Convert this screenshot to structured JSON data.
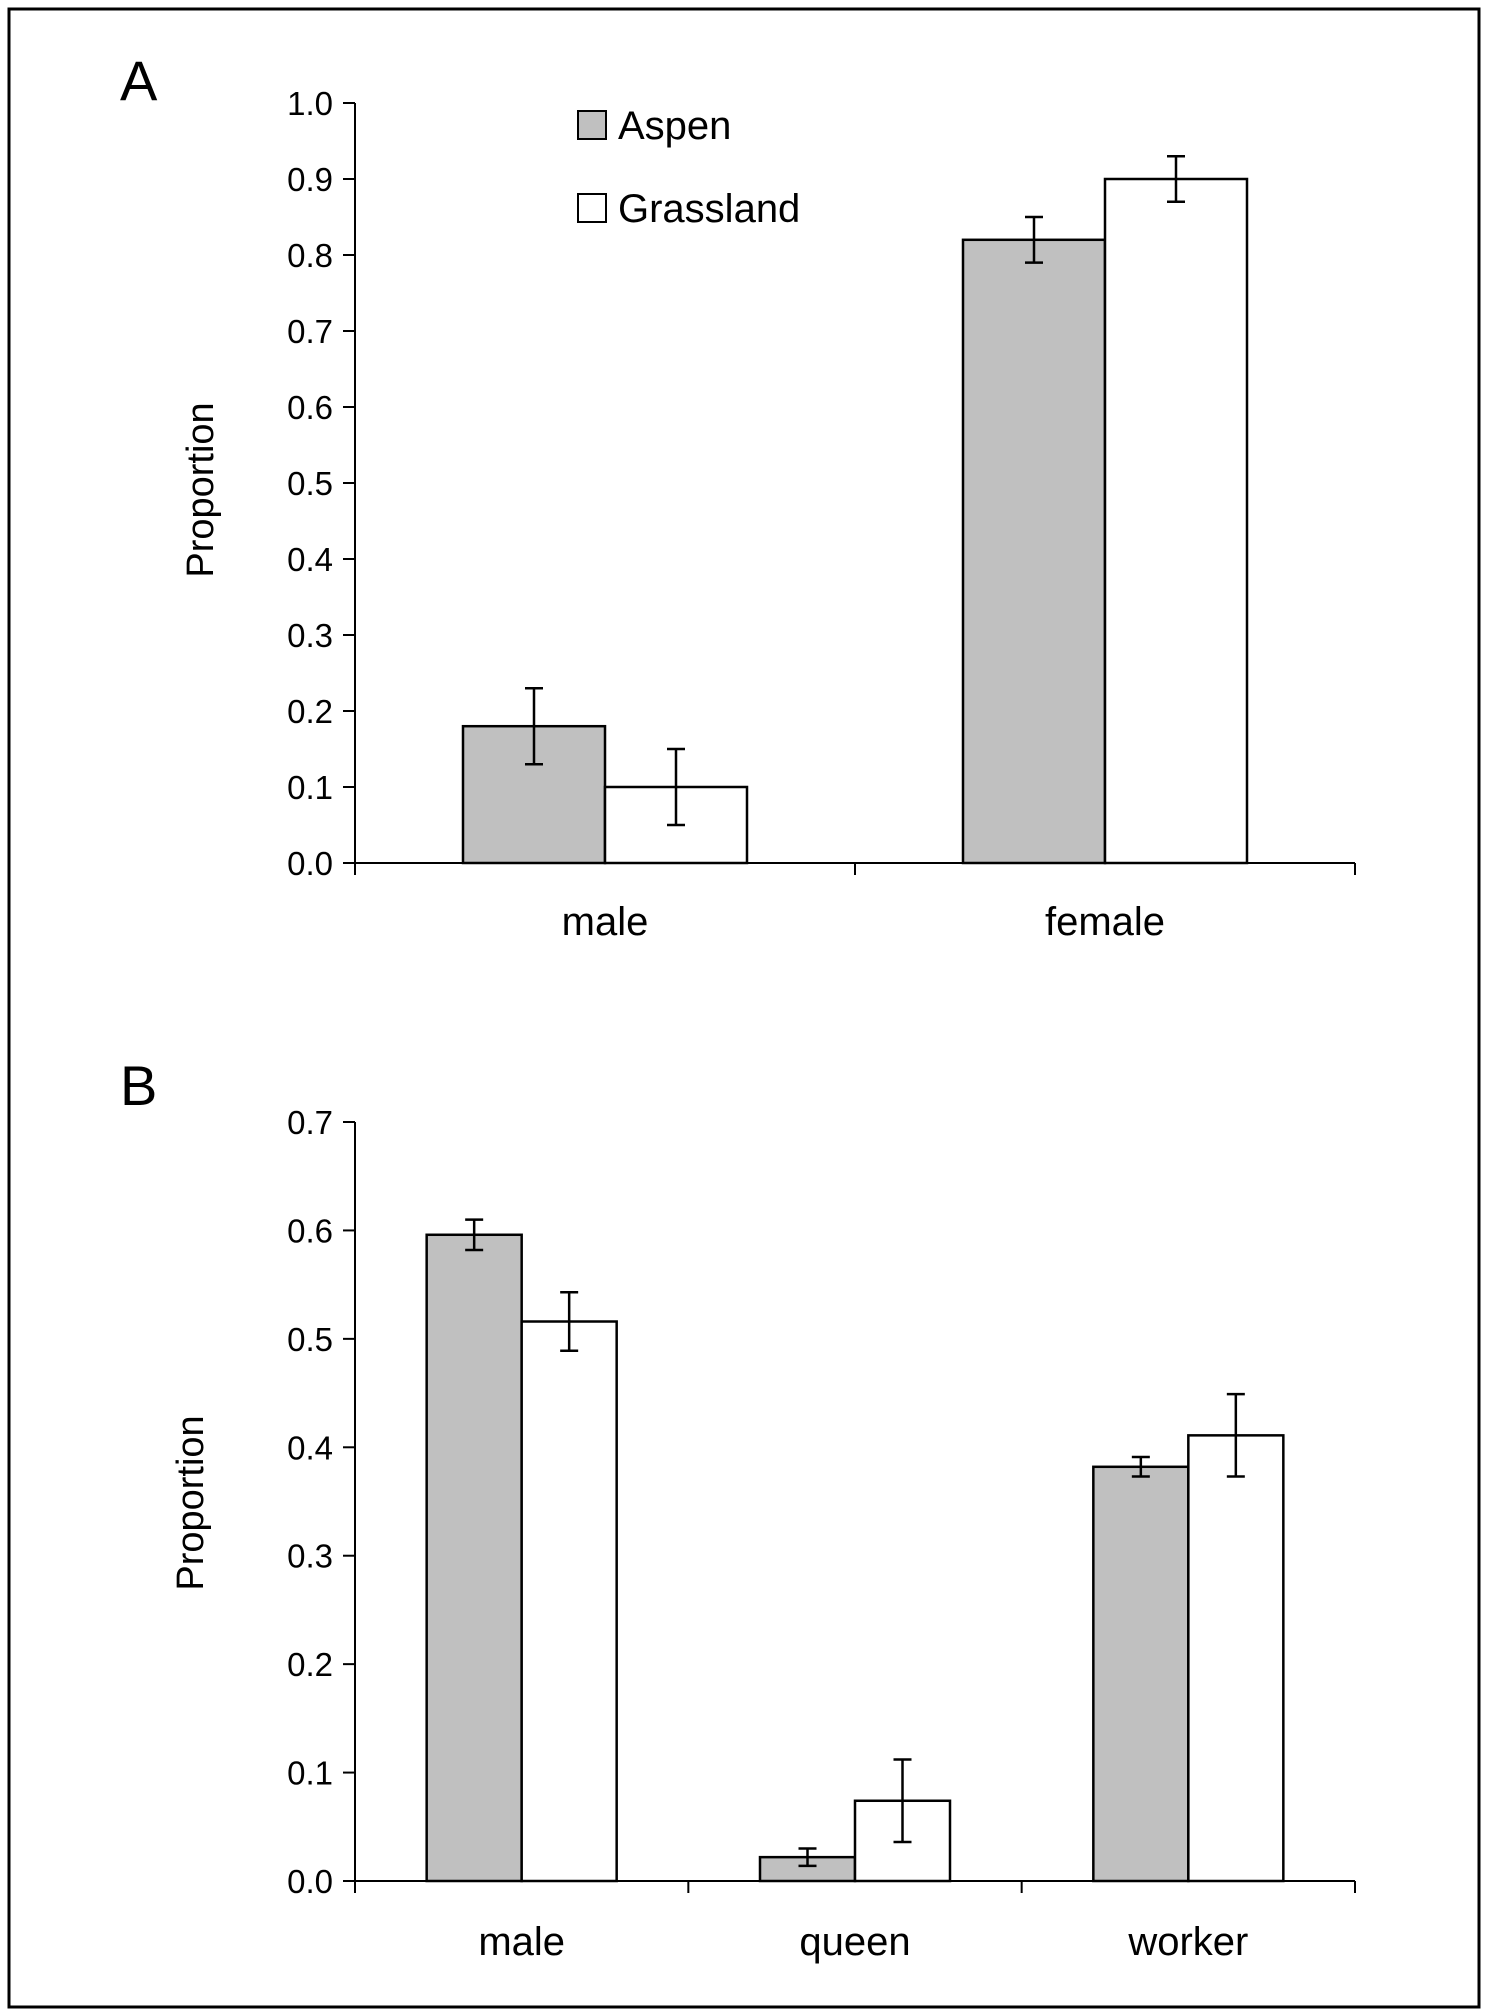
{
  "colors": {
    "aspen": "#c0c0c0",
    "grassland": "#ffffff",
    "stroke": "#000000"
  },
  "chart_data": [
    {
      "panel_label": "A",
      "type": "bar",
      "categories": [
        "male",
        "female"
      ],
      "series": [
        {
          "name": "Aspen",
          "values": [
            0.18,
            0.82
          ],
          "errors": [
            0.05,
            0.03
          ]
        },
        {
          "name": "Grassland",
          "values": [
            0.1,
            0.9
          ],
          "errors": [
            0.05,
            0.03
          ]
        }
      ],
      "ylabel": "Proportion",
      "ylim": [
        0,
        1.0
      ],
      "yticks": [
        "0.0",
        "0.1",
        "0.2",
        "0.3",
        "0.4",
        "0.5",
        "0.6",
        "0.7",
        "0.8",
        "0.9",
        "1.0"
      ],
      "legend": "top-left inside plot",
      "grid": false
    },
    {
      "panel_label": "B",
      "type": "bar",
      "categories": [
        "male",
        "queen",
        "worker"
      ],
      "series": [
        {
          "name": "Aspen",
          "values": [
            0.596,
            0.022,
            0.382
          ],
          "errors": [
            0.014,
            0.008,
            0.009
          ]
        },
        {
          "name": "Grassland",
          "values": [
            0.516,
            0.074,
            0.411
          ],
          "errors": [
            0.027,
            0.038,
            0.038
          ]
        }
      ],
      "ylabel": "Proportion",
      "ylim": [
        0,
        0.7
      ],
      "yticks": [
        "0.0",
        "0.1",
        "0.2",
        "0.3",
        "0.4",
        "0.5",
        "0.6",
        "0.7"
      ],
      "grid": false
    }
  ]
}
